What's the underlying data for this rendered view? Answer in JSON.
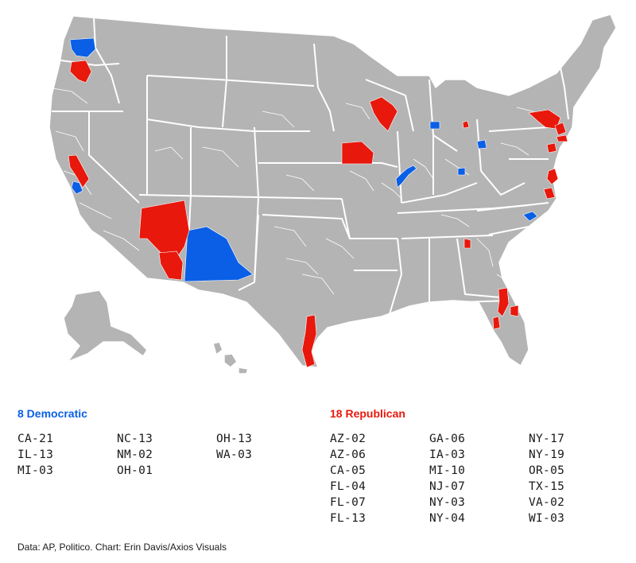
{
  "colors": {
    "land": "#b4b4b4",
    "border": "#ffffff",
    "democratic": "#0a5fe6",
    "republican": "#e8180c",
    "text": "#1a1a1a"
  },
  "legend": {
    "democratic": {
      "title": "8 Democratic",
      "districts": [
        "CA-21",
        "IL-13",
        "MI-03",
        "NC-13",
        "NM-02",
        "OH-01",
        "OH-13",
        "WA-03"
      ]
    },
    "republican": {
      "title": "18 Republican",
      "districts": [
        "AZ-02",
        "AZ-06",
        "CA-05",
        "FL-04",
        "FL-07",
        "FL-13",
        "GA-06",
        "IA-03",
        "MI-10",
        "NJ-07",
        "NY-03",
        "NY-04",
        "NY-17",
        "NY-19",
        "OR-05",
        "TX-15",
        "VA-02",
        "WI-03"
      ]
    }
  },
  "source": "Data: AP, Politico. Chart: Erin Davis/Axios Visuals"
}
